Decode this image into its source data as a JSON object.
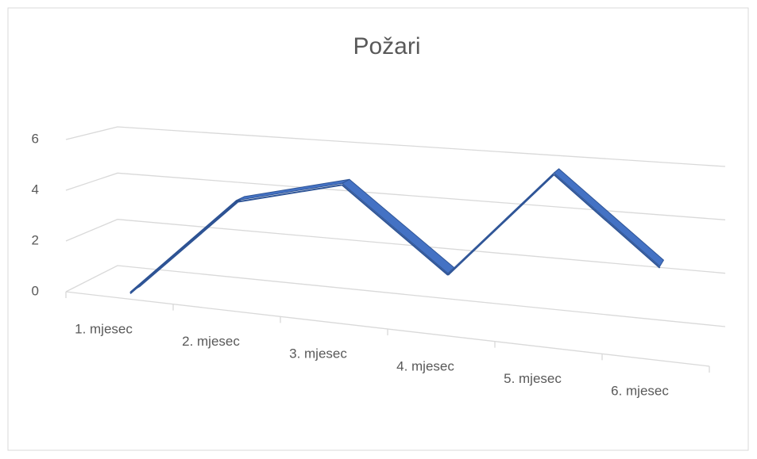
{
  "chart_data": {
    "type": "line3d",
    "title": "Požari",
    "categories": [
      "1. mjesec",
      "2. mjesec",
      "3. mjesec",
      "4. mjesec",
      "5. mjesec",
      "6. mjesec"
    ],
    "values": [
      0,
      4,
      5,
      2,
      6,
      3
    ],
    "color": "#4472c4",
    "ylim": [
      0,
      6
    ],
    "yticks": [
      0,
      2,
      4,
      6
    ],
    "grid": true
  }
}
